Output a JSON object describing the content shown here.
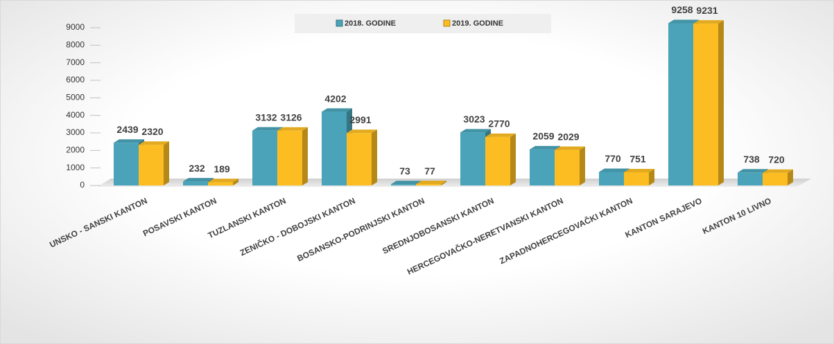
{
  "chart_data": {
    "type": "bar",
    "categories": [
      "UNSKO - SANSKI KANTON",
      "POSAVSKI KANTON",
      "TUZLANSKI KANTON",
      "ZENIČKO - DOBOJSKI KANTON",
      "BOSANSKO-PODRINJSKI KANTON",
      "SREDNJOBOSANSKI KANTON",
      "HERCEGOVAČKO-NERETVANSKI KANTON",
      "ZAPADNOHERCEGOVAČKI KANTON",
      "KANTON SARAJEVO",
      "KANTON 10 LIVNO"
    ],
    "series": [
      {
        "name": "2018. GODINE",
        "color": "#4aa3b8",
        "values": [
          2439,
          232,
          3132,
          4202,
          73,
          3023,
          2059,
          770,
          9258,
          738
        ]
      },
      {
        "name": "2019. GODINE",
        "color": "#fbbd22",
        "values": [
          2320,
          189,
          3126,
          2991,
          77,
          2770,
          2029,
          751,
          9231,
          720
        ]
      }
    ],
    "ylim": [
      0,
      9000
    ],
    "yticks": [
      0,
      1000,
      2000,
      3000,
      4000,
      5000,
      6000,
      7000,
      8000,
      9000
    ],
    "legend": "top"
  }
}
